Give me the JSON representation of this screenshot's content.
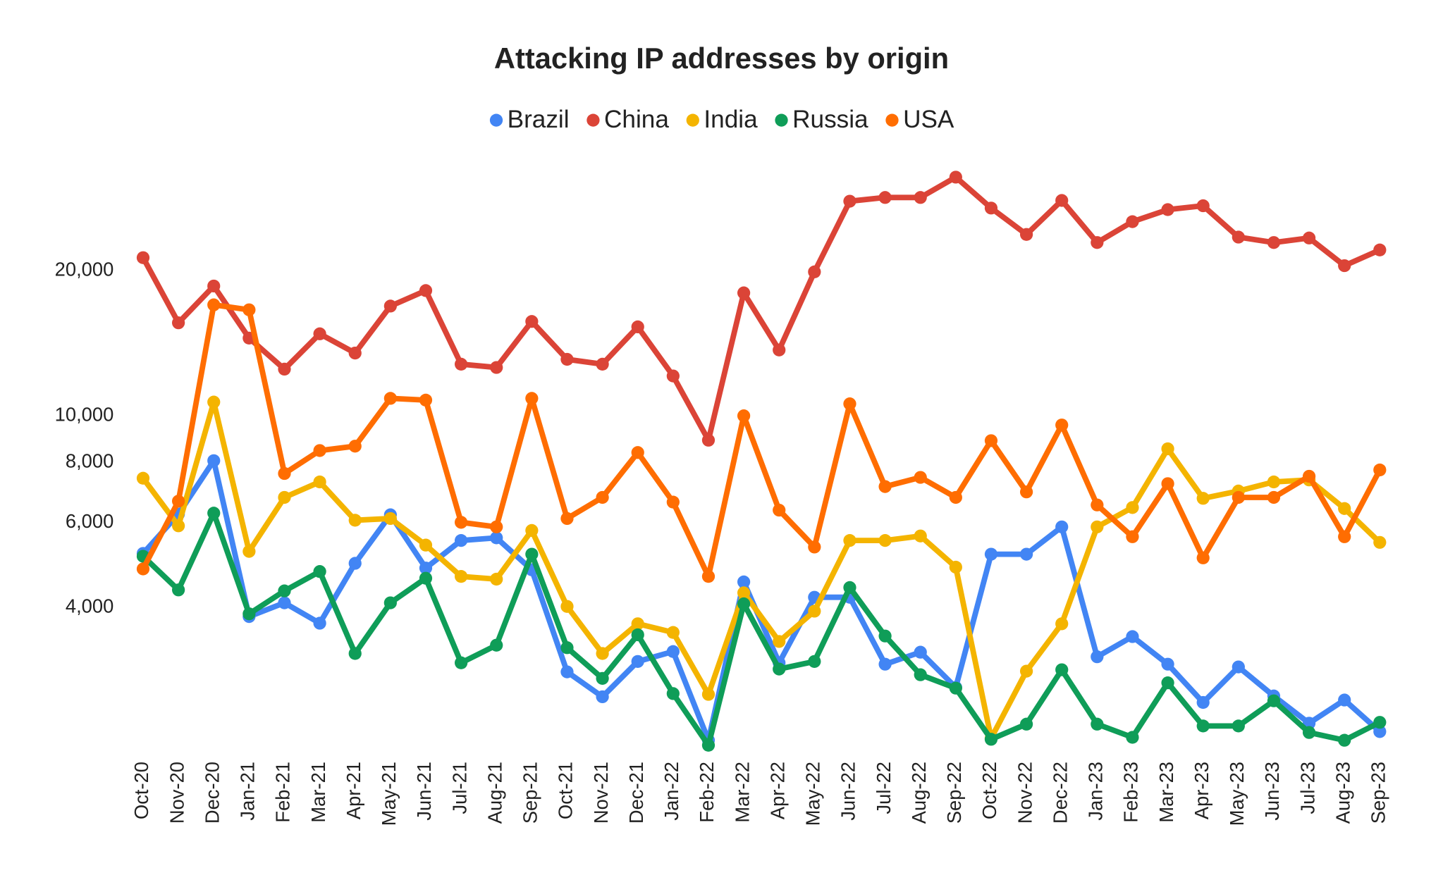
{
  "chart_data": {
    "type": "line",
    "title": "Attacking IP addresses by origin",
    "categories": [
      "Oct-20",
      "Nov-20",
      "Dec-20",
      "Jan-21",
      "Feb-21",
      "Mar-21",
      "Apr-21",
      "May-21",
      "Jun-21",
      "Jul-21",
      "Aug-21",
      "Sep-21",
      "Oct-21",
      "Nov-21",
      "Dec-21",
      "Jan-22",
      "Feb-22",
      "Mar-22",
      "Apr-22",
      "May-22",
      "Jun-22",
      "Jul-22",
      "Aug-22",
      "Sep-22",
      "Oct-22",
      "Nov-22",
      "Dec-22",
      "Jan-23",
      "Feb-23",
      "Mar-23",
      "Apr-23",
      "May-23",
      "Jun-23",
      "Jul-23",
      "Aug-23",
      "Sep-23"
    ],
    "series": [
      {
        "name": "Brazil",
        "color": "#4285f4",
        "values": [
          5180,
          6250,
          8070,
          3830,
          4090,
          3710,
          4940,
          6230,
          4830,
          5510,
          5580,
          4790,
          2940,
          2610,
          3090,
          3240,
          2120,
          4520,
          3070,
          4200,
          4200,
          3050,
          3230,
          2730,
          5160,
          5160,
          5880,
          3160,
          3480,
          3050,
          2540,
          3010,
          2620,
          2300,
          2570,
          2210
        ]
      },
      {
        "name": "China",
        "color": "#db4437",
        "values": [
          21300,
          15600,
          18600,
          14500,
          12500,
          14800,
          13500,
          16900,
          18200,
          12800,
          12600,
          15700,
          13100,
          12800,
          15300,
          12100,
          8900,
          18000,
          13700,
          19900,
          27900,
          28400,
          28400,
          31300,
          27000,
          23800,
          28000,
          22900,
          25300,
          26800,
          27300,
          23500,
          22900,
          23400,
          20500,
          22100
        ]
      },
      {
        "name": "India",
        "color": "#f4b400",
        "values": [
          7420,
          5910,
          10680,
          5230,
          6770,
          7290,
          6070,
          6120,
          5390,
          4640,
          4580,
          5780,
          4020,
          3210,
          3700,
          3550,
          2640,
          4290,
          3400,
          3930,
          5510,
          5510,
          5630,
          4850,
          2140,
          2950,
          3700,
          5880,
          6450,
          8540,
          6740,
          6980,
          7290,
          7360,
          6420,
          5460
        ]
      },
      {
        "name": "Russia",
        "color": "#0f9d58",
        "values": [
          5110,
          4350,
          6280,
          3880,
          4330,
          4750,
          3210,
          4090,
          4600,
          3070,
          3340,
          5160,
          3300,
          2850,
          3510,
          2650,
          2070,
          4070,
          2980,
          3090,
          4400,
          3490,
          2900,
          2720,
          2130,
          2290,
          2970,
          2290,
          2150,
          2790,
          2270,
          2270,
          2560,
          2200,
          2120,
          2310
        ]
      },
      {
        "name": "USA",
        "color": "#ff6d01",
        "values": [
          4810,
          6650,
          17000,
          16600,
          7590,
          8470,
          8650,
          10870,
          10780,
          6010,
          5880,
          10870,
          6120,
          6770,
          8390,
          6620,
          4640,
          10000,
          6370,
          5340,
          10590,
          7130,
          7450,
          6770,
          8880,
          6950,
          9570,
          6530,
          5610,
          7230,
          5070,
          6770,
          6770,
          7490,
          5610,
          7720
        ]
      }
    ],
    "ylim": [
      2000,
      33000
    ],
    "log_scale": true,
    "yticks": [
      {
        "value": 4000,
        "label": "4,000"
      },
      {
        "value": 6000,
        "label": "6,000"
      },
      {
        "value": 8000,
        "label": "8,000"
      },
      {
        "value": 10000,
        "label": "10,000"
      },
      {
        "value": 20000,
        "label": "20,000"
      }
    ],
    "grid": false,
    "legend_position": "top"
  }
}
